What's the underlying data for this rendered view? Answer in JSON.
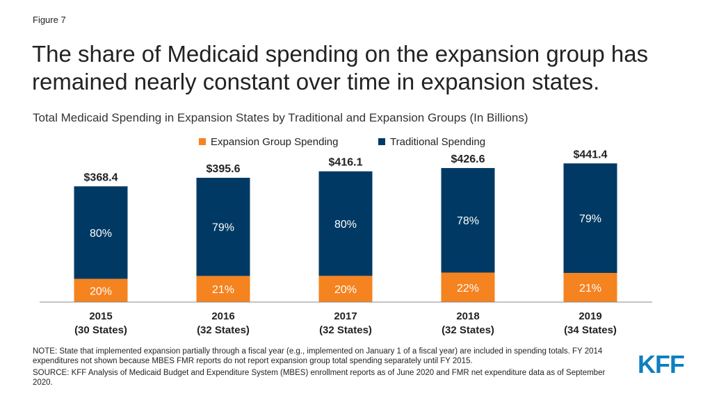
{
  "figure_label": "Figure 7",
  "title": "The share of Medicaid spending on the expansion group has remained nearly constant over time in expansion states.",
  "chart_data": {
    "type": "bar",
    "stacked": true,
    "title": "Total Medicaid Spending in Expansion States by Traditional and Expansion Groups (In Billions)",
    "categories": [
      "2015",
      "2016",
      "2017",
      "2018",
      "2019"
    ],
    "category_sublabels": [
      "(30 States)",
      "(32 States)",
      "(32 States)",
      "(32 States)",
      "(34 States)"
    ],
    "totals": [
      368.4,
      395.6,
      416.1,
      426.6,
      441.4
    ],
    "total_labels": [
      "$368.4",
      "$395.6",
      "$416.1",
      "$426.6",
      "$441.4"
    ],
    "series": [
      {
        "name": "Expansion Group Spending",
        "color": "#f5831f",
        "share_pct": [
          20,
          21,
          20,
          22,
          21
        ],
        "labels": [
          "20%",
          "21%",
          "20%",
          "22%",
          "21%"
        ]
      },
      {
        "name": "Traditional Spending",
        "color": "#003a64",
        "share_pct": [
          80,
          79,
          80,
          78,
          79
        ],
        "labels": [
          "80%",
          "79%",
          "80%",
          "78%",
          "79%"
        ]
      }
    ],
    "legend_position": "top-center",
    "grid": false
  },
  "notes": {
    "note": "NOTE: State that implemented expansion partially through a fiscal year (e.g., implemented on January 1 of a fiscal year) are included in spending totals. FY 2014 expenditures not shown because MBES FMR reports do not report expansion group total spending separately until FY 2015.",
    "source": "SOURCE: KFF Analysis of Medicaid Budget and Expenditure System (MBES) enrollment reports as of June 2020 and FMR net expenditure data as of September 2020."
  },
  "logo": "KFF"
}
